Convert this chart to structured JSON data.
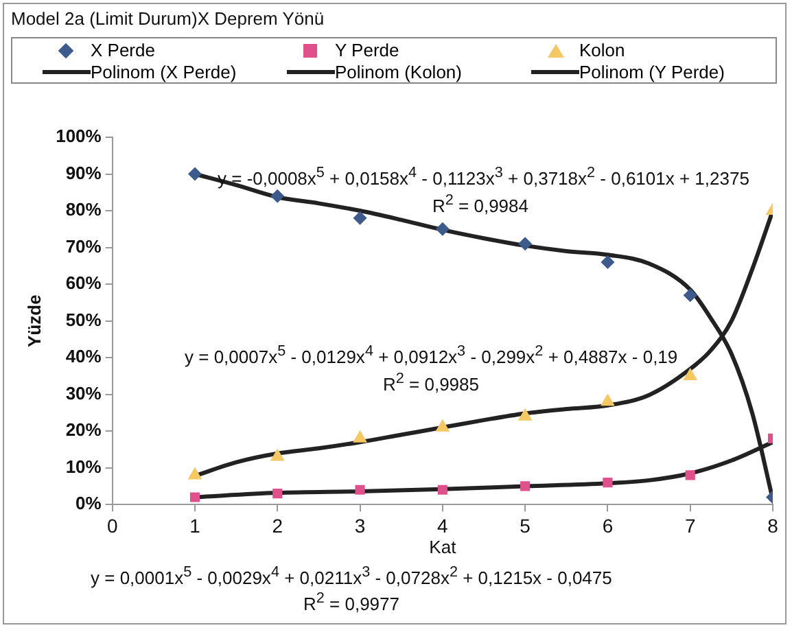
{
  "chart_data": {
    "type": "scatter",
    "title": "Model 2a (Limit Durum)X Deprem Yönü",
    "xlabel": "Kat",
    "ylabel": "Yüzde",
    "xlim": [
      0,
      8
    ],
    "xticks": [
      0,
      1,
      2,
      3,
      4,
      5,
      6,
      7,
      8
    ],
    "ylim": [
      0,
      100
    ],
    "yticks": [
      {
        "value": 0,
        "label": "0%"
      },
      {
        "value": 10,
        "label": "10%"
      },
      {
        "value": 20,
        "label": "20%"
      },
      {
        "value": 30,
        "label": "30%"
      },
      {
        "value": 40,
        "label": "40%"
      },
      {
        "value": 50,
        "label": "50%"
      },
      {
        "value": 60,
        "label": "60%"
      },
      {
        "value": 70,
        "label": "70%"
      },
      {
        "value": 80,
        "label": "80%"
      },
      {
        "value": 90,
        "label": "90%"
      },
      {
        "value": 100,
        "label": "100%"
      }
    ],
    "legend": "top",
    "series": [
      {
        "name": "X Perde",
        "type": "scatter",
        "marker": "diamond",
        "color": "#3d5a8c",
        "x": [
          1,
          2,
          3,
          4,
          5,
          6,
          7,
          8
        ],
        "values": [
          90,
          84,
          78,
          75,
          71,
          66,
          57,
          2
        ]
      },
      {
        "name": "Y Perde",
        "type": "scatter",
        "marker": "square",
        "color": "#e0508a",
        "x": [
          1,
          2,
          3,
          4,
          5,
          6,
          7,
          8
        ],
        "values": [
          2,
          3,
          4,
          4,
          5,
          6,
          8,
          18
        ]
      },
      {
        "name": "Kolon",
        "type": "scatter",
        "marker": "triangle",
        "color": "#f5c862",
        "x": [
          1,
          2,
          3,
          4,
          5,
          6,
          7,
          8
        ],
        "values": [
          8,
          13,
          18,
          21,
          24,
          28,
          35,
          80
        ]
      },
      {
        "name": "Polinom (X Perde)",
        "type": "line",
        "marker": "none",
        "color": "#222222",
        "x": [
          1,
          1.5,
          2,
          2.5,
          3,
          3.5,
          4,
          4.5,
          5,
          5.5,
          6,
          6.5,
          7,
          7.25,
          7.5,
          7.75,
          8
        ],
        "values": [
          90,
          87,
          83.7,
          82,
          80,
          77.5,
          74.8,
          72.5,
          70.5,
          69,
          68,
          65.6,
          58.5,
          50.7,
          41,
          25,
          1.4
        ]
      },
      {
        "name": "Polinom (Kolon)",
        "type": "line",
        "marker": "none",
        "color": "#222222",
        "x": [
          1,
          1.5,
          2,
          2.5,
          3,
          3.5,
          4,
          4.5,
          5,
          5.5,
          6,
          6.5,
          7,
          7.25,
          7.5,
          7.75,
          8
        ],
        "values": [
          7.8,
          11.5,
          13.9,
          15.3,
          17,
          19,
          21,
          23,
          24.8,
          26,
          27,
          29.8,
          36.9,
          42,
          50,
          64,
          80
        ]
      },
      {
        "name": "Polinom (Y Perde)",
        "type": "line",
        "marker": "none",
        "color": "#222222",
        "x": [
          1,
          2,
          3,
          4,
          5,
          6,
          6.5,
          7,
          7.5,
          8
        ],
        "values": [
          2,
          3.2,
          3.6,
          4.2,
          5,
          5.8,
          6.6,
          8.5,
          12,
          17
        ]
      }
    ],
    "annotations": [
      "y = -0,0008x$^{5}$ + 0,0158x$^{4}$ - 0,1123x$^{3}$ + 0,3718x$^{2}$ - 0,6101x + 1,2375",
      "R$^{2}$ = 0,9984",
      "y = 0,0007x$^{5}$ - 0,0129x$^{4}$ + 0,0912x$^{3}$ - 0,299x$^{2}$ + 0,4887x - 0,19",
      "R$^{2}$ = 0,9985",
      "y = 0,0001x$^{5}$ - 0,0029x$^{4}$ + 0,0211x$^{3}$ - 0,0728x$^{2}$ + 0,1215x - 0,0475",
      "R$^{2}$ = 0,9977"
    ]
  }
}
